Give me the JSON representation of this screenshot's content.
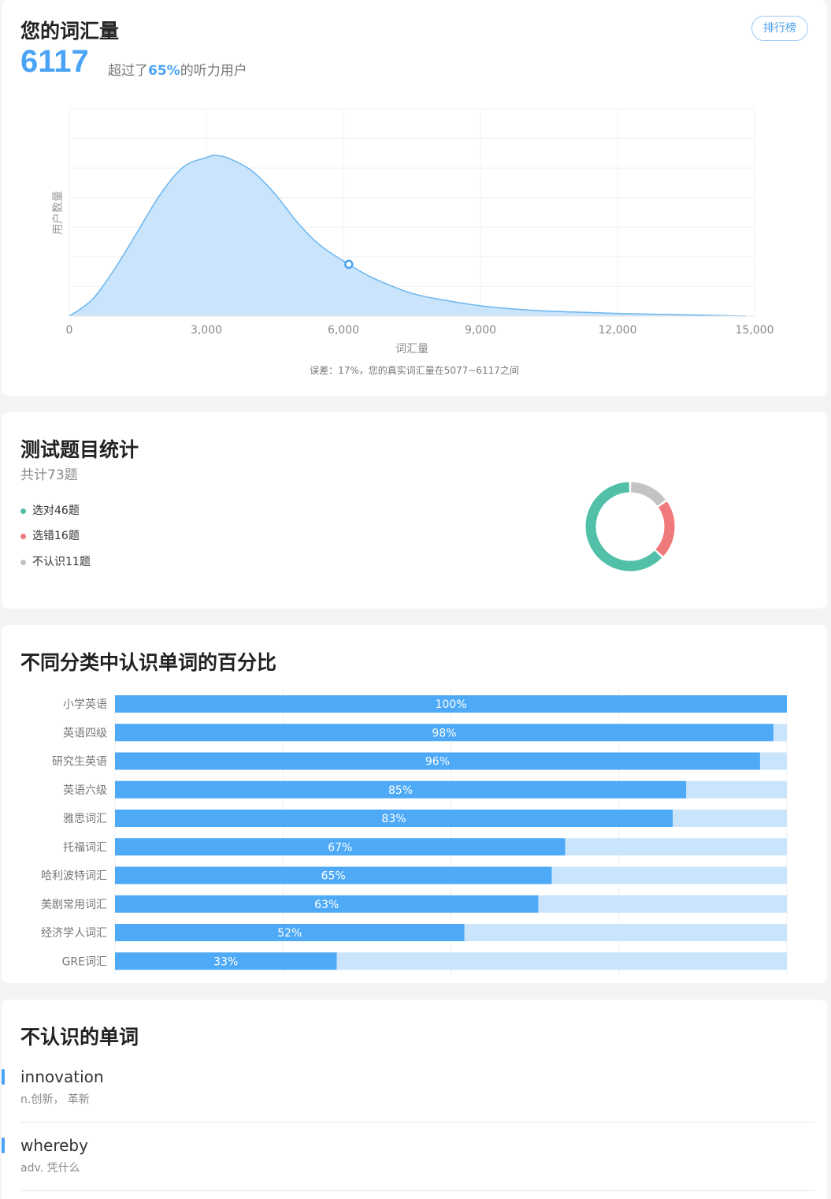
{
  "vocab": {
    "title": "您的词汇量",
    "ranking_label": "排行榜",
    "count": "6117",
    "beat_prefix": "超过了",
    "beat_pct": "65%",
    "beat_suffix": "的听力用户",
    "error_note": "误差：17%，您的真实词汇量在5077~6117之间"
  },
  "chart_data": [
    {
      "type": "area",
      "title": "",
      "xlabel": "词汇量",
      "ylabel": "用户数量",
      "x_ticks": [
        "0",
        "3,000",
        "6,000",
        "9,000",
        "12,000",
        "15,000"
      ],
      "xlim": [
        0,
        15000
      ],
      "ylim": [
        0,
        100
      ],
      "grid": true,
      "x": [
        0,
        500,
        1000,
        1500,
        2000,
        2500,
        3000,
        3200,
        3500,
        4000,
        4500,
        5000,
        5500,
        6117,
        6500,
        7000,
        7500,
        8000,
        9000,
        10000,
        11000,
        12000,
        13000,
        14000,
        14800
      ],
      "values": [
        0,
        8,
        23,
        41,
        59,
        72,
        76.5,
        77.5,
        76,
        70,
        59,
        45,
        34,
        25,
        20,
        15,
        11,
        8.5,
        5,
        3,
        2,
        1.3,
        0.8,
        0.4,
        0
      ],
      "highlight_point": {
        "x": 6117,
        "y": 25
      },
      "color": "#6cb6ee",
      "fill": "#c9e4fb"
    },
    {
      "type": "pie",
      "title": "",
      "labels": [
        "选对",
        "选错",
        "不认识"
      ],
      "values": [
        46,
        16,
        11
      ],
      "colors": [
        "#52c0a8",
        "#f07a7b",
        "#c3c3c3"
      ]
    },
    {
      "type": "bar",
      "title": "",
      "orientation": "horizontal",
      "categories": [
        "小学英语",
        "英语四级",
        "研究生英语",
        "英语六级",
        "雅思词汇",
        "托福词汇",
        "哈利波特词汇",
        "美剧常用词汇",
        "经济学人词汇",
        "GRE词汇"
      ],
      "values": [
        100,
        98,
        96,
        85,
        83,
        67,
        65,
        63,
        52,
        33
      ],
      "value_labels": [
        "100%",
        "98%",
        "96%",
        "85%",
        "83%",
        "67%",
        "65%",
        "63%",
        "52%",
        "33%"
      ],
      "xlim": [
        0,
        100
      ],
      "color": "#4eaaf7",
      "track_color": "#cae4fb"
    }
  ],
  "test_stats": {
    "title": "测试题目统计",
    "total": "共计73题",
    "legend": [
      {
        "label": "选对46题",
        "color": "#52c0a8"
      },
      {
        "label": "选错16题",
        "color": "#f07a7b"
      },
      {
        "label": "不认识11题",
        "color": "#c3c3c3"
      }
    ]
  },
  "category": {
    "title": "不同分类中认识单词的百分比"
  },
  "unknown": {
    "title": "不认识的单词",
    "words": [
      {
        "word": "innovation",
        "definition": "n.创新， 革新"
      },
      {
        "word": "whereby",
        "definition": "adv. 凭什么"
      }
    ]
  }
}
